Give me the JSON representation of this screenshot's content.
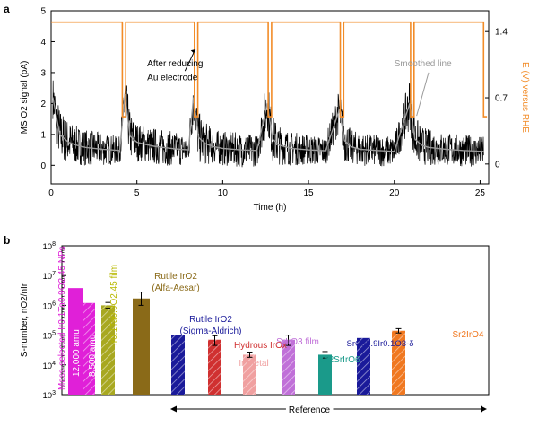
{
  "panel_a_label": "a",
  "panel_b_label": "b",
  "chart_data": [
    {
      "panel": "a",
      "type": "line",
      "title": "",
      "xlabel": "Time (h)",
      "ylabel_left": "MS O2 signal (pA)",
      "ylabel_right": "E (V) versus RHE",
      "xlim": [
        0,
        25.5
      ],
      "ylim_left": [
        -0.6,
        5
      ],
      "ylim_right": [
        -0.21,
        1.62
      ],
      "xticks": [
        0,
        5,
        10,
        15,
        20,
        25
      ],
      "yticks_left": [
        0,
        1,
        2,
        3,
        4,
        5
      ],
      "yticks_right": [
        0,
        0.7,
        1.4
      ],
      "series": [
        {
          "name": "MS O2 signal (raw)",
          "color": "#000000",
          "x": [
            0.1,
            0.5,
            1.0,
            1.5,
            2.0,
            2.5,
            3.0,
            3.5,
            4.0,
            4.3,
            4.6,
            5.0,
            5.5,
            6.0,
            6.5,
            7.0,
            7.5,
            8.0,
            8.3,
            8.6,
            9.0,
            9.5,
            10.0,
            11.0,
            12.0,
            12.6,
            12.9,
            13.3,
            14.0,
            15.0,
            16.0,
            16.8,
            17.1,
            17.5,
            18.0,
            19.0,
            20.0,
            20.9,
            21.2,
            21.6,
            22.0,
            23.0,
            24.0,
            25.2
          ],
          "y": [
            2.7,
            1.6,
            1.25,
            1.1,
            1.0,
            0.95,
            0.9,
            0.85,
            0.8,
            2.9,
            1.5,
            1.2,
            1.1,
            1.05,
            1.0,
            0.95,
            0.9,
            0.85,
            2.8,
            1.5,
            1.2,
            1.0,
            0.95,
            0.9,
            0.85,
            2.6,
            1.4,
            1.1,
            0.95,
            0.85,
            0.8,
            2.3,
            1.3,
            1.0,
            0.9,
            0.85,
            0.8,
            2.6,
            1.4,
            1.1,
            1.0,
            0.9,
            0.85,
            0.8
          ]
        },
        {
          "name": "Smoothed line",
          "color": "#9a9a9a",
          "x": [
            0.1,
            0.5,
            1.0,
            1.5,
            2.0,
            2.5,
            3.0,
            3.5,
            4.0,
            4.3,
            4.6,
            5.0,
            5.5,
            6.0,
            6.5,
            7.0,
            7.5,
            8.0,
            8.3,
            8.6,
            9.0,
            9.5,
            10.0,
            11.0,
            12.0,
            12.6,
            12.9,
            13.3,
            14.0,
            15.0,
            16.0,
            16.8,
            17.1,
            17.5,
            18.0,
            19.0,
            20.0,
            20.9,
            21.2,
            21.6,
            22.0,
            23.0,
            24.0,
            25.2
          ],
          "y": [
            2.2,
            1.0,
            0.75,
            0.65,
            0.58,
            0.55,
            0.52,
            0.5,
            0.48,
            2.3,
            0.95,
            0.75,
            0.68,
            0.62,
            0.58,
            0.55,
            0.52,
            0.5,
            2.2,
            0.9,
            0.7,
            0.6,
            0.55,
            0.5,
            0.48,
            2.0,
            0.85,
            0.65,
            0.55,
            0.5,
            0.47,
            1.8,
            0.8,
            0.6,
            0.52,
            0.48,
            0.45,
            2.0,
            0.85,
            0.65,
            0.58,
            0.52,
            0.48,
            0.45
          ]
        },
        {
          "name": "E (V) versus RHE",
          "color": "#f28c28",
          "axis": "right",
          "x": [
            0,
            4.15,
            4.15,
            4.35,
            4.35,
            8.35,
            8.35,
            8.55,
            8.55,
            12.65,
            12.65,
            12.85,
            12.85,
            16.85,
            16.85,
            17.05,
            17.05,
            20.95,
            20.95,
            21.15,
            21.15,
            25.2,
            25.2,
            25.4
          ],
          "y": [
            1.5,
            1.5,
            0.5,
            0.5,
            1.5,
            1.5,
            0.5,
            0.5,
            1.5,
            1.5,
            0.5,
            0.5,
            1.5,
            1.5,
            0.5,
            0.5,
            1.5,
            1.5,
            0.5,
            0.5,
            1.5,
            1.5,
            0.5,
            0.5
          ]
        }
      ],
      "annotations": [
        {
          "text": "After reducing",
          "x": 5.6,
          "y": 3.2
        },
        {
          "text": "Au electrode",
          "x": 5.6,
          "y": 2.75
        },
        {
          "text": "Smoothed line",
          "x": 20.0,
          "y": 3.2
        }
      ]
    },
    {
      "panel": "b",
      "type": "bar",
      "title": "",
      "xlabel": "",
      "ylabel": "S-number, nO2/nIr",
      "yscale": "log",
      "ylim": [
        1000,
        100000000
      ],
      "ytick_labels": [
        "10^3",
        "10^4",
        "10^5",
        "10^6",
        "10^7",
        "10^8"
      ],
      "categories": [
        "Mass-selected Ir0.1Ta0.9O2.45 NPs 12,000 amu",
        "Mass-selected Ir0.1Ta0.9O2.45 NPs 8,500 amu",
        "Ir0.1Ta0.9O2.45 film",
        "Rutile IrO2 (Alfa-Aesar)",
        "Rutile IrO2 (Sigma-Aldrich)",
        "Hydrous IrOx",
        "Ir metal",
        "SrIrO3 film",
        "Ba2SrIrO6",
        "SrCo0.9Ir0.1O3-d",
        "Sr2IrO4"
      ],
      "values": [
        3800000,
        1200000,
        1000000,
        1700000,
        100000,
        70000,
        22000,
        70000,
        22000,
        80000,
        140000
      ],
      "error_low": [
        null,
        null,
        800000,
        1000000,
        null,
        45000,
        18000,
        45000,
        17000,
        null,
        118000
      ],
      "error_high": [
        null,
        null,
        1250000,
        2800000,
        null,
        95000,
        27000,
        100000,
        28000,
        null,
        165000
      ],
      "colors": [
        "#e020d8",
        "#e020d8",
        "#a8a820",
        "#8a6a18",
        "#1a1a9a",
        "#d03030",
        "#f0a0a0",
        "#c070d8",
        "#1a9a8a",
        "#1a1a9a",
        "#f07820"
      ],
      "bar_labels": [
        {
          "text": "Mass-selected Ir",
          "sub1": "0.1",
          "mid": "Ta",
          "sub2": "0.9",
          "mid2": "O",
          "sub3": "2.45",
          "end": " NPs",
          "color": "#e020d8"
        },
        {
          "text": "12,000 amu",
          "color": "#ffffff"
        },
        {
          "text": "8,500 amu",
          "color": "#ffffff"
        },
        {
          "text": "Ir0.1Ta0.9O2.45 film",
          "color": "#b8b800"
        },
        {
          "text": "Rutile IrO2",
          "text2": "(Alfa-Aesar)",
          "color": "#8a6a18"
        },
        {
          "text": "Rutile IrO2",
          "text2": "(Sigma-Aldrich)",
          "color": "#1a1a9a"
        },
        {
          "text": "Hydrous IrOx",
          "color": "#d03030"
        },
        {
          "text": "Ir metal",
          "color": "#f0a0a0"
        },
        {
          "text": "SrIrO3 film",
          "color": "#c070d8"
        },
        {
          "text": "Ba2SrIrO6",
          "color": "#1a9a8a"
        },
        {
          "text": "SrCo0.9Ir0.1O3-δ",
          "color": "#1a1a9a"
        },
        {
          "text": "Sr2IrO4",
          "color": "#f07820"
        }
      ],
      "reference_label": "Reference"
    }
  ]
}
